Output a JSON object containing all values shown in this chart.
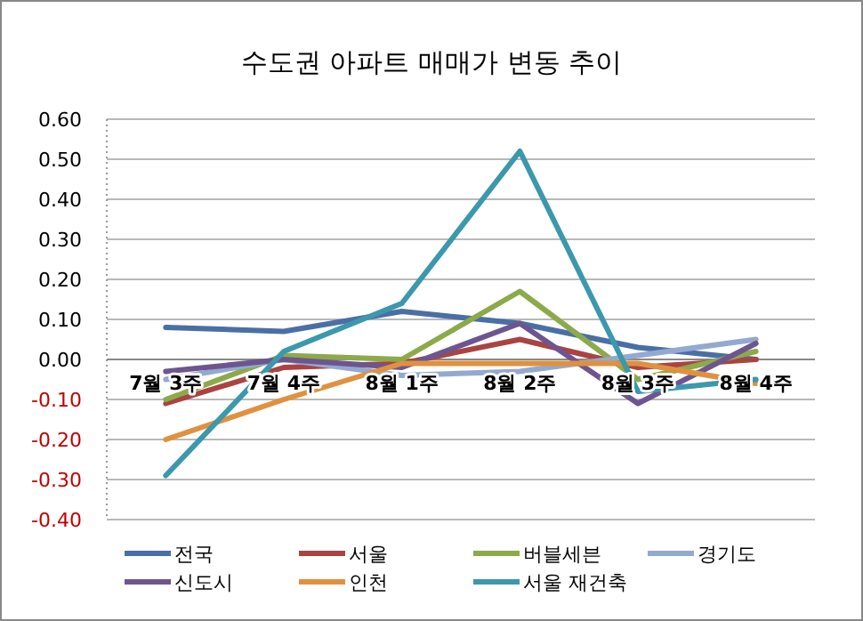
{
  "chart_data": {
    "type": "line",
    "title": "수도권 아파트 매매가 변동 추이",
    "categories": [
      "7월 3주",
      "7월 4주",
      "8월 1주",
      "8월 2주",
      "8월 3주",
      "8월 4주"
    ],
    "series": [
      {
        "name": "전국",
        "color": "#4a6fa5",
        "values": [
          0.08,
          0.07,
          0.12,
          0.09,
          0.03,
          0.0
        ]
      },
      {
        "name": "서울",
        "color": "#a94442",
        "values": [
          -0.11,
          -0.02,
          -0.01,
          0.05,
          -0.02,
          0.0
        ]
      },
      {
        "name": "버블세븐",
        "color": "#8caa4a",
        "values": [
          -0.1,
          0.01,
          0.0,
          0.17,
          -0.05,
          0.02
        ]
      },
      {
        "name": "경기도",
        "color": "#93a9d0",
        "values": [
          -0.05,
          0.0,
          -0.04,
          -0.03,
          0.01,
          0.05
        ]
      },
      {
        "name": "신도시",
        "color": "#6e558f",
        "values": [
          -0.03,
          0.0,
          -0.02,
          0.09,
          -0.11,
          0.04
        ]
      },
      {
        "name": "인천",
        "color": "#e0913f",
        "values": [
          -0.2,
          -0.1,
          -0.01,
          -0.01,
          -0.01,
          -0.06
        ]
      },
      {
        "name": "서울 재건축",
        "color": "#3b98ad",
        "values": [
          -0.29,
          0.02,
          0.14,
          0.52,
          -0.08,
          -0.05
        ]
      }
    ],
    "ylim": [
      -0.4,
      0.6
    ],
    "yticks": [
      {
        "value": -0.4,
        "label": "-0.40"
      },
      {
        "value": -0.3,
        "label": "-0.30"
      },
      {
        "value": -0.2,
        "label": "-0.20"
      },
      {
        "value": -0.1,
        "label": "-0.10"
      },
      {
        "value": 0,
        "label": "0.00"
      },
      {
        "value": 0.1,
        "label": "0.10"
      },
      {
        "value": 0.2,
        "label": "0.20"
      },
      {
        "value": 0.3,
        "label": "0.30"
      },
      {
        "value": 0.4,
        "label": "0.40"
      },
      {
        "value": 0.5,
        "label": "0.50"
      },
      {
        "value": 0.6,
        "label": "0.60"
      }
    ],
    "grid": "y",
    "legend": "bottom",
    "marker": "none",
    "line_style": "solid"
  }
}
